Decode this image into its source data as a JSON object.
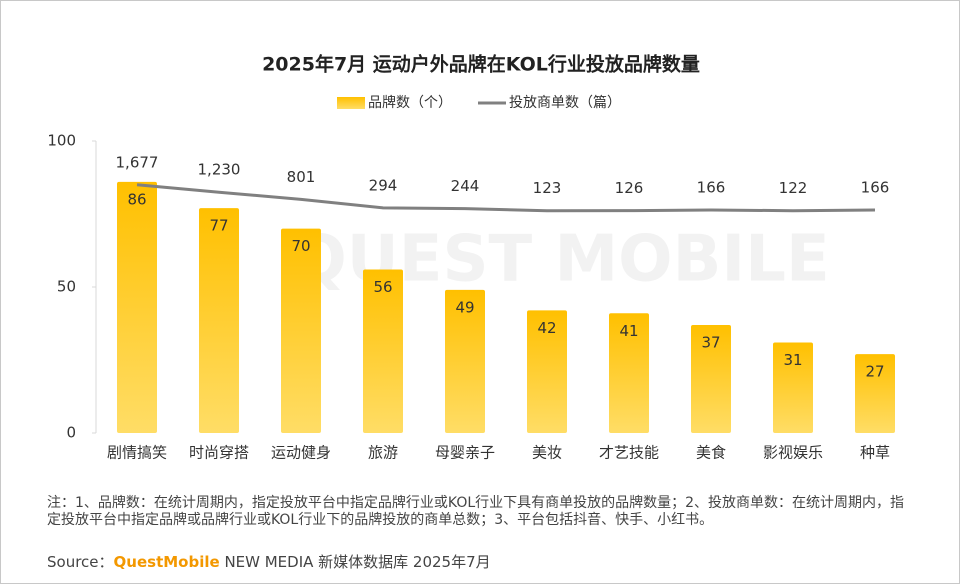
{
  "chart_data": {
    "type": "bar",
    "title": "2025年7月 运动户外品牌在KOL行业投放品牌数量",
    "watermark": "QUEST MOBILE",
    "categories": [
      "剧情搞笑",
      "时尚穿搭",
      "运动健身",
      "旅游",
      "母婴亲子",
      "美妆",
      "才艺技能",
      "美食",
      "影视娱乐",
      "种草"
    ],
    "series": [
      {
        "name": "品牌数（个）",
        "type": "bar",
        "color": "#FFC000",
        "values": [
          86,
          77,
          70,
          56,
          49,
          42,
          41,
          37,
          31,
          27
        ]
      },
      {
        "name": "投放商单数（篇）",
        "type": "line",
        "axis": "y2",
        "color": "#808080",
        "values": [
          1677,
          1230,
          801,
          294,
          244,
          123,
          126,
          166,
          122,
          166
        ],
        "value_labels": [
          "1,677",
          "1,230",
          "801",
          "294",
          "244",
          "123",
          "126",
          "166",
          "122",
          "166"
        ]
      }
    ],
    "ylim": [
      0,
      100
    ],
    "yticks": [
      0,
      50,
      100
    ],
    "y2lim": [
      -13200,
      4300
    ],
    "grid": false,
    "legend": "top",
    "notes": "注：1、品牌数：在统计周期内，指定投放平台中指定品牌行业或KOL行业下具有商单投放的品牌数量；2、投放商单数：在统计周期内，指定投放平台中指定品牌或品牌行业或KOL行业下的品牌投放的商单总数；3、平台包括抖音、快手、小红书。",
    "source": {
      "label": "Source：",
      "brand": "QuestMobile",
      "text": " NEW MEDIA 新媒体数据库 2025年7月"
    }
  }
}
